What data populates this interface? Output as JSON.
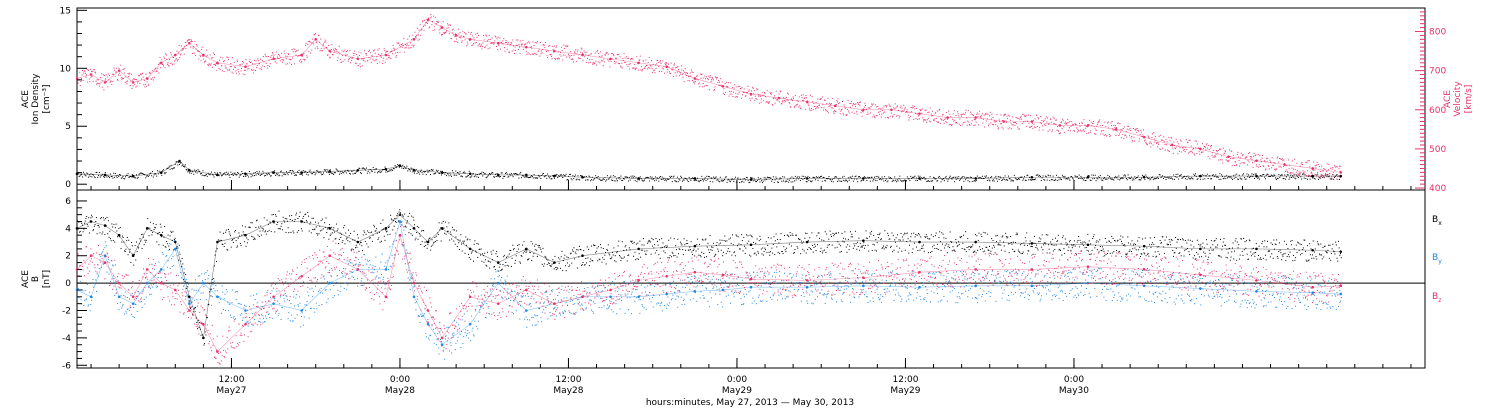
{
  "colors": {
    "background": "#ffffff",
    "axis": "#000000",
    "density": "#000000",
    "velocity": "#e8336a",
    "bx": "#000000",
    "by": "#1e88e5",
    "bz": "#e8336a"
  },
  "chart_data": [
    {
      "type": "scatter",
      "panel": "top",
      "title": "",
      "y_label_left": "ACE Ion Density",
      "y_unit_left": "[cm⁻³]",
      "y_label_right": "ACE Velocity",
      "y_unit_right": "[km/s]",
      "x_range_hours": [
        0,
        96
      ],
      "ylim_left": [
        -0.5,
        15.2
      ],
      "yticks_left": [
        0,
        5,
        10,
        15
      ],
      "ylim_right": [
        395,
        860
      ],
      "yticks_right": [
        400,
        500,
        600,
        700,
        800
      ],
      "grid": false,
      "series": [
        {
          "axis": "left",
          "color_key": "density",
          "x": [
            0,
            2,
            4,
            6,
            7.3,
            8,
            10,
            12,
            14,
            16,
            18,
            20,
            22,
            23,
            24,
            26,
            28,
            30,
            32,
            34,
            36,
            40,
            44,
            48,
            52,
            56,
            60,
            64,
            68,
            72,
            76,
            80,
            84,
            88,
            90
          ],
          "y": [
            0.9,
            0.8,
            0.7,
            1.0,
            2.0,
            1.2,
            0.8,
            0.9,
            1.0,
            1.0,
            1.1,
            1.2,
            1.3,
            1.6,
            1.2,
            1.0,
            0.9,
            0.8,
            0.8,
            0.7,
            0.6,
            0.5,
            0.5,
            0.4,
            0.5,
            0.5,
            0.5,
            0.5,
            0.6,
            0.6,
            0.6,
            0.7,
            0.7,
            0.7,
            0.7
          ]
        },
        {
          "axis": "right",
          "color_key": "velocity",
          "x": [
            0,
            1,
            2,
            3,
            4,
            5,
            6,
            7,
            8,
            9,
            10,
            12,
            14,
            16,
            17,
            18,
            20,
            22,
            24,
            25,
            26,
            27,
            28,
            30,
            32,
            34,
            36,
            38,
            40,
            42,
            44,
            46,
            48,
            50,
            52,
            54,
            56,
            58,
            60,
            62,
            64,
            66,
            68,
            70,
            72,
            74,
            76,
            78,
            80,
            82,
            84,
            86,
            88,
            90
          ],
          "y": [
            680,
            690,
            670,
            700,
            670,
            680,
            720,
            740,
            770,
            740,
            720,
            710,
            730,
            740,
            780,
            750,
            730,
            740,
            780,
            830,
            810,
            790,
            780,
            770,
            760,
            750,
            740,
            730,
            720,
            710,
            680,
            660,
            640,
            630,
            620,
            610,
            600,
            600,
            590,
            580,
            580,
            570,
            570,
            560,
            560,
            550,
            530,
            510,
            500,
            480,
            470,
            460,
            450,
            440
          ]
        }
      ]
    },
    {
      "type": "scatter",
      "panel": "bottom",
      "title": "",
      "y_label": "ACE B",
      "y_unit": "[nT]",
      "x_range_hours": [
        0,
        96
      ],
      "ylim": [
        -6.2,
        6.8
      ],
      "yticks": [
        -6,
        -4,
        -2,
        0,
        2,
        4,
        6
      ],
      "zero_line": true,
      "grid": false,
      "legend_position": "right",
      "x_axis_title": "hours:minutes, May 27, 2013 — May 30, 2013",
      "x_ticks": [
        {
          "hour": 11,
          "time": "12:00",
          "date": "May27"
        },
        {
          "hour": 23,
          "time": "0:00",
          "date": "May28"
        },
        {
          "hour": 35,
          "time": "12:00",
          "date": "May28"
        },
        {
          "hour": 47,
          "time": "0:00",
          "date": "May29"
        },
        {
          "hour": 59,
          "time": "12:00",
          "date": "May29"
        },
        {
          "hour": 71,
          "time": "0:00",
          "date": "May30"
        }
      ],
      "series": [
        {
          "name": "Bx",
          "label_main": "B",
          "label_sub": "x",
          "color_key": "bx",
          "x": [
            0,
            1,
            2,
            3,
            4,
            5,
            6,
            7,
            8,
            9,
            10,
            12,
            14,
            16,
            18,
            20,
            22,
            23,
            24,
            25,
            26,
            28,
            30,
            32,
            34,
            36,
            40,
            44,
            48,
            52,
            56,
            60,
            64,
            68,
            72,
            76,
            80,
            84,
            88,
            90
          ],
          "y": [
            4.0,
            4.5,
            4.2,
            3.5,
            2.0,
            4.0,
            3.5,
            3.0,
            -1.0,
            -4.0,
            3.0,
            3.5,
            4.5,
            4.5,
            4.0,
            3.0,
            4.0,
            5.0,
            4.0,
            3.0,
            4.0,
            2.5,
            1.5,
            2.5,
            1.5,
            2.0,
            2.5,
            2.7,
            2.8,
            3.0,
            3.1,
            3.0,
            3.0,
            2.9,
            2.8,
            2.7,
            2.5,
            2.5,
            2.4,
            2.3
          ]
        },
        {
          "name": "By",
          "label_main": "B",
          "label_sub": "y",
          "color_key": "by",
          "x": [
            0,
            1,
            2,
            3,
            4,
            5,
            6,
            7,
            8,
            9,
            10,
            12,
            14,
            16,
            18,
            20,
            22,
            23,
            24,
            25,
            26,
            28,
            30,
            32,
            34,
            36,
            38,
            40,
            42,
            44,
            46,
            48,
            52,
            56,
            60,
            64,
            68,
            72,
            76,
            80,
            84,
            88,
            90
          ],
          "y": [
            -0.5,
            -1.0,
            2.0,
            -1.0,
            -1.5,
            0.0,
            1.0,
            2.5,
            -1.5,
            0.0,
            -1.0,
            -2.0,
            -1.5,
            -2.0,
            0.0,
            1.0,
            1.0,
            4.5,
            -1.0,
            -3.0,
            -4.5,
            -3.0,
            0.0,
            -2.0,
            -1.5,
            -1.0,
            -1.0,
            -1.0,
            -0.8,
            -0.6,
            -0.5,
            -0.3,
            -0.3,
            -0.2,
            -0.3,
            -0.2,
            -0.2,
            0.0,
            -0.2,
            -0.4,
            -0.6,
            -0.7,
            -0.8
          ]
        },
        {
          "name": "Bz",
          "label_main": "B",
          "label_sub": "z",
          "color_key": "bz",
          "x": [
            0,
            1,
            2,
            3,
            4,
            5,
            6,
            7,
            8,
            9,
            10,
            12,
            14,
            16,
            18,
            20,
            22,
            23,
            24,
            25,
            26,
            28,
            30,
            32,
            34,
            36,
            38,
            40,
            42,
            44,
            46,
            48,
            52,
            56,
            60,
            64,
            68,
            72,
            76,
            80,
            84,
            88,
            90
          ],
          "y": [
            1.0,
            2.0,
            1.5,
            0.0,
            -1.0,
            1.0,
            0.0,
            -0.5,
            -2.0,
            -3.0,
            -5.0,
            -3.0,
            -1.0,
            0.5,
            2.0,
            1.0,
            -1.0,
            3.5,
            0.0,
            -2.0,
            -4.0,
            -1.0,
            -1.5,
            -0.5,
            -1.5,
            -1.0,
            -0.5,
            0.2,
            0.5,
            0.8,
            0.6,
            0.3,
            0.2,
            0.4,
            0.8,
            1.0,
            1.0,
            1.2,
            1.0,
            0.6,
            0.2,
            -0.3,
            -0.2
          ]
        }
      ]
    }
  ]
}
